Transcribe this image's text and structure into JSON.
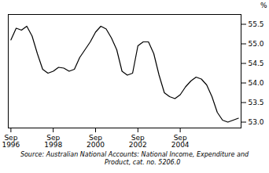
{
  "chart_data": {
    "type": "line",
    "y_label": "%",
    "caption": "Source: Australian National Accounts: National Income, Expenditure and\n        Product, cat. no. 5206.0",
    "categories": [
      "Sep\n1996",
      null,
      null,
      null,
      null,
      null,
      null,
      null,
      "Sep\n1998",
      null,
      null,
      null,
      null,
      null,
      null,
      null,
      "Sep\n2000",
      null,
      null,
      null,
      null,
      null,
      null,
      null,
      "Sep\n2002",
      null,
      null,
      null,
      null,
      null,
      null,
      null,
      "Sep\n2004",
      null,
      null,
      null,
      null,
      null,
      null,
      null,
      null,
      null,
      null,
      null
    ],
    "values": [
      55.1,
      55.4,
      55.35,
      55.45,
      55.2,
      54.75,
      54.35,
      54.25,
      54.3,
      54.4,
      54.38,
      54.3,
      54.35,
      54.65,
      54.85,
      55.05,
      55.3,
      55.45,
      55.38,
      55.15,
      54.85,
      54.3,
      54.2,
      54.25,
      54.95,
      55.05,
      55.05,
      54.75,
      54.2,
      53.75,
      53.65,
      53.6,
      53.7,
      53.9,
      54.05,
      54.15,
      54.1,
      53.95,
      53.65,
      53.25,
      53.05,
      53.0,
      53.05,
      53.1
    ],
    "color": "#000000",
    "ylim": [
      52.85,
      55.75
    ],
    "yticks": [
      {
        "value": 53.0,
        "label": "53.0"
      },
      53.5,
      {
        "value": 54.0,
        "label": "54.0"
      },
      54.5,
      {
        "value": 55.0,
        "label": "55.0"
      },
      55.5
    ],
    "grid": false
  }
}
